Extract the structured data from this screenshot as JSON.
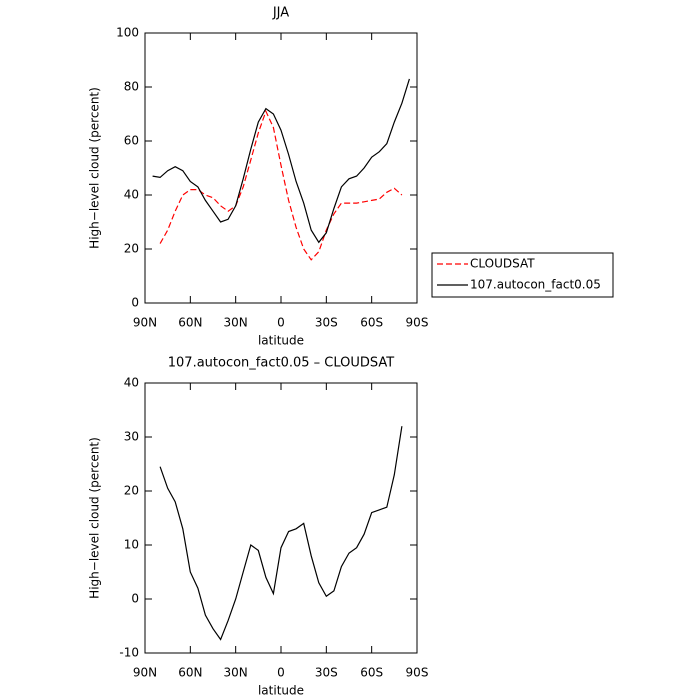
{
  "chart_data": [
    {
      "type": "line",
      "title": "JJA",
      "xlabel": "latitude",
      "ylabel": "High−level cloud (percent)",
      "x": [
        85,
        80,
        75,
        70,
        65,
        60,
        55,
        50,
        45,
        40,
        35,
        30,
        25,
        20,
        15,
        10,
        5,
        0,
        -5,
        -10,
        -15,
        -20,
        -25,
        -30,
        -35,
        -40,
        -45,
        -50,
        -55,
        -60,
        -65,
        -70,
        -75,
        -80,
        -85
      ],
      "series": [
        {
          "name": "CLOUDSAT",
          "color": "#ff0000",
          "dashed": true,
          "values": [
            null,
            22,
            27,
            34,
            40,
            42,
            42,
            40,
            39,
            36,
            34,
            36,
            43,
            53,
            63,
            71,
            65,
            51,
            38,
            28,
            20,
            16,
            19,
            27,
            33,
            37,
            37,
            37,
            37.5,
            38,
            38.5,
            41,
            42.5,
            40,
            null
          ]
        },
        {
          "name": "107.autocon_fact0.05",
          "color": "#000000",
          "dashed": false,
          "values": [
            47,
            46.5,
            49,
            50.5,
            49,
            45,
            43,
            38,
            34,
            30,
            31,
            36,
            46,
            57,
            67,
            72,
            70,
            64,
            55,
            45,
            37,
            27,
            22.5,
            26,
            35,
            43,
            46,
            47,
            50,
            54,
            56,
            59,
            67,
            74,
            83
          ]
        }
      ],
      "xlim": [
        90,
        -90
      ],
      "xticks": [
        {
          "value": 90,
          "label": "90N"
        },
        {
          "value": 60,
          "label": "60N"
        },
        {
          "value": 30,
          "label": "30N"
        },
        0,
        {
          "value": -30,
          "label": "30S"
        },
        {
          "value": -60,
          "label": "60S"
        },
        {
          "value": -90,
          "label": "90S"
        }
      ],
      "ylim": [
        0,
        100
      ],
      "yticks": [
        0,
        20,
        40,
        60,
        80,
        100
      ],
      "legend": "right"
    },
    {
      "type": "line",
      "title": "107.autocon_fact0.05 – CLOUDSAT",
      "xlabel": "latitude",
      "ylabel": "High−level cloud (percent)",
      "x": [
        85,
        80,
        75,
        70,
        65,
        60,
        55,
        50,
        45,
        40,
        35,
        30,
        25,
        20,
        15,
        10,
        5,
        0,
        -5,
        -10,
        -15,
        -20,
        -25,
        -30,
        -35,
        -40,
        -45,
        -50,
        -55,
        -60,
        -65,
        -70,
        -75,
        -80,
        -85
      ],
      "values": [
        null,
        24.5,
        20.5,
        18,
        13,
        5,
        2,
        -3,
        -5.5,
        -7.5,
        -4,
        0,
        5,
        10,
        9,
        4,
        1,
        9.5,
        12.5,
        13,
        14,
        8,
        3,
        0.5,
        1.5,
        6,
        8.5,
        9.5,
        12,
        16,
        16.5,
        17,
        23,
        32,
        null
      ],
      "color": "#000000",
      "xlim": [
        90,
        -90
      ],
      "xticks": [
        {
          "value": 90,
          "label": "90N"
        },
        {
          "value": 60,
          "label": "60N"
        },
        {
          "value": 30,
          "label": "30N"
        },
        0,
        {
          "value": -30,
          "label": "30S"
        },
        {
          "value": -60,
          "label": "60S"
        },
        {
          "value": -90,
          "label": "90S"
        }
      ],
      "ylim": [
        -10,
        40
      ],
      "yticks": [
        -10,
        0,
        10,
        20,
        30,
        40
      ]
    }
  ]
}
